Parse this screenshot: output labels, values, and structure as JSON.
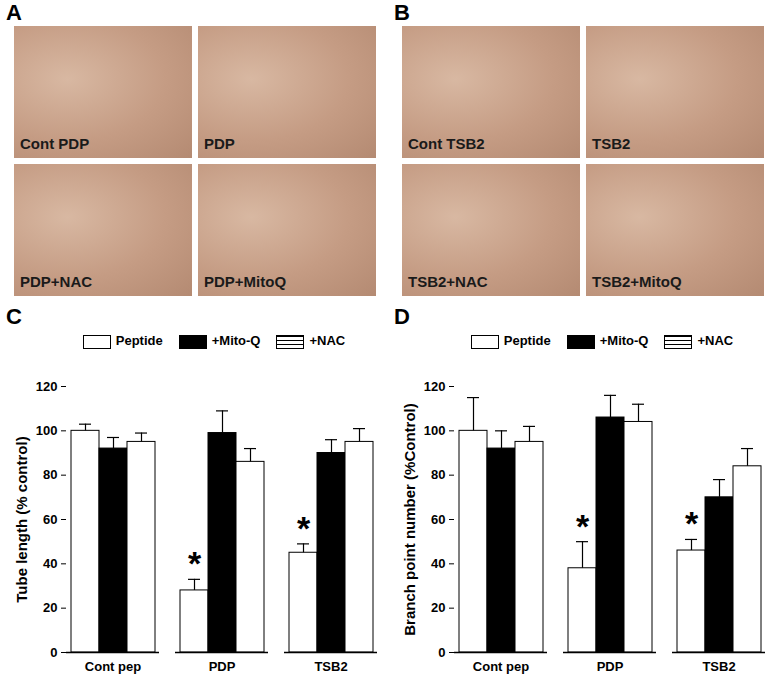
{
  "panels": [
    {
      "label": "A",
      "images": [
        "Cont PDP",
        "PDP",
        "PDP+NAC",
        "PDP+MitoQ"
      ]
    },
    {
      "label": "B",
      "images": [
        "Cont TSB2",
        "TSB2",
        "TSB2+NAC",
        "TSB2+MitoQ"
      ]
    }
  ],
  "chart_data": [
    {
      "type": "bar",
      "title": "C",
      "ylabel": "Tube length (% control)",
      "categories": [
        "Cont pep",
        "PDP",
        "TSB2"
      ],
      "series": [
        {
          "name": "Peptide",
          "color": "#ffffff",
          "values": [
            100,
            28,
            45
          ],
          "errors": [
            3,
            5,
            4
          ]
        },
        {
          "name": "+Mito-Q",
          "color": "#000000",
          "values": [
            92,
            99,
            90
          ],
          "errors": [
            5,
            10,
            6
          ]
        },
        {
          "name": "+NAC",
          "color": "#ffffff",
          "line_style": "striped",
          "values": [
            95,
            86,
            95
          ],
          "errors": [
            4,
            6,
            6
          ]
        }
      ],
      "ylim": [
        0,
        120
      ],
      "yticks": [
        0,
        20,
        40,
        60,
        80,
        100,
        120
      ],
      "legend": "top",
      "annotations": [
        {
          "category": "PDP",
          "series": "Peptide",
          "text": "*"
        },
        {
          "category": "TSB2",
          "series": "Peptide",
          "text": "*"
        }
      ]
    },
    {
      "type": "bar",
      "title": "D",
      "ylabel": "Branch point number (%Control)",
      "categories": [
        "Cont pep",
        "PDP",
        "TSB2"
      ],
      "series": [
        {
          "name": "Peptide",
          "color": "#ffffff",
          "values": [
            100,
            38,
            46
          ],
          "errors": [
            15,
            12,
            5
          ]
        },
        {
          "name": "+Mito-Q",
          "color": "#000000",
          "values": [
            92,
            106,
            70
          ],
          "errors": [
            8,
            10,
            8
          ]
        },
        {
          "name": "+NAC",
          "color": "#ffffff",
          "line_style": "striped",
          "values": [
            95,
            104,
            84
          ],
          "errors": [
            7,
            8,
            8
          ]
        }
      ],
      "ylim": [
        0,
        120
      ],
      "yticks": [
        0,
        20,
        40,
        60,
        80,
        100,
        120
      ],
      "legend": "top",
      "annotations": [
        {
          "category": "PDP",
          "series": "Peptide",
          "text": "*"
        },
        {
          "category": "TSB2",
          "series": "Peptide",
          "text": "*"
        }
      ]
    }
  ]
}
